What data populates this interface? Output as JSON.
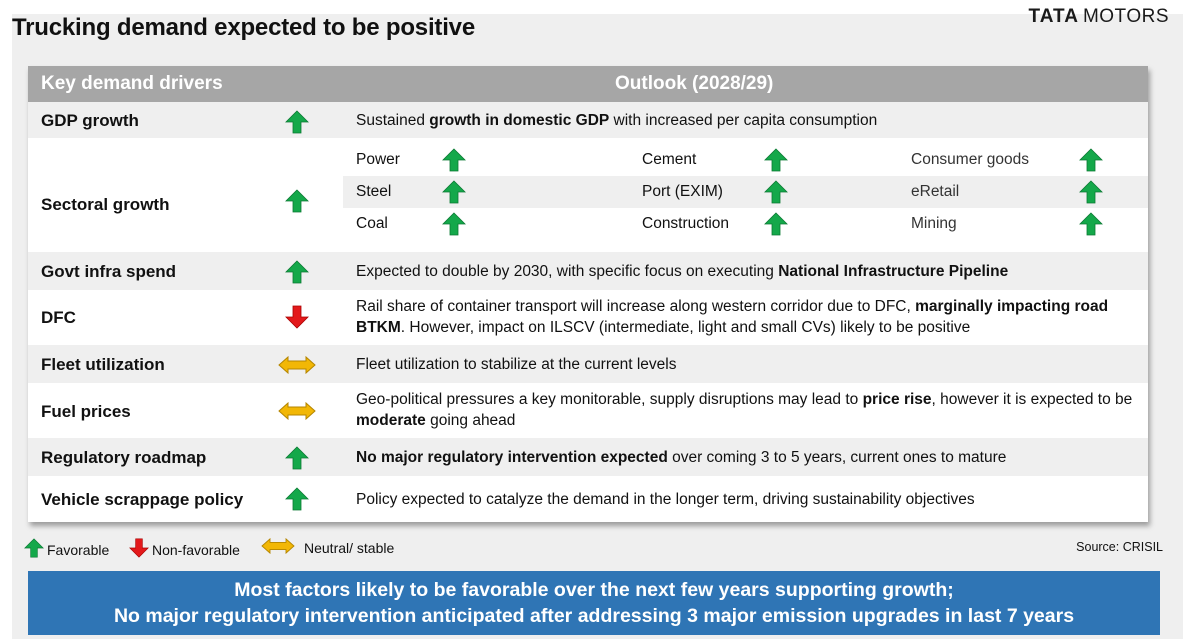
{
  "title": "Trucking demand expected to be positive",
  "logo": {
    "brand": "TATA",
    "name": "MOTORS"
  },
  "colors": {
    "up": "#14a84a",
    "down": "#e3191b",
    "neutral": "#f2b705",
    "header": "#a6a6a6",
    "banner": "#2f75b5"
  },
  "table": {
    "header_left": "Key demand drivers",
    "header_right": "Outlook (2028/29)",
    "rows": [
      {
        "label": "GDP growth",
        "indicator": "up-arrow-icon",
        "desc": {
          "a": "Sustained ",
          "b": "growth in domestic GDP",
          "c": " with increased per capita consumption"
        }
      },
      {
        "label": "Sectoral growth",
        "indicator": "up-arrow-icon",
        "sectors": [
          [
            "Power",
            "Cement",
            "Consumer goods"
          ],
          [
            "Steel",
            "Port (EXIM)",
            "eRetail"
          ],
          [
            "Coal",
            "Construction",
            "Mining"
          ]
        ]
      },
      {
        "label": "Govt infra spend",
        "indicator": "up-arrow-icon",
        "desc": {
          "a": "Expected to double by 2030, with specific focus on executing ",
          "b": "National Infrastructure Pipeline"
        }
      },
      {
        "label": "DFC",
        "indicator": "down-arrow-icon",
        "desc": {
          "a": "Rail share of container transport will increase along western corridor due to DFC, ",
          "b": "marginally impacting road BTKM",
          "c": ". However, impact on ILSCV (intermediate, light and small CVs) likely to be positive"
        }
      },
      {
        "label": "Fleet utilization",
        "indicator": "neutral-arrow-icon",
        "desc": {
          "a": "Fleet utilization to stabilize at the current levels"
        }
      },
      {
        "label": "Fuel prices",
        "indicator": "neutral-arrow-icon",
        "desc": {
          "a": "Geo-political pressures a key monitorable, supply disruptions may lead to ",
          "b": "price rise",
          "c": ", however it is expected to be ",
          "d": "moderate",
          "e": " going ahead"
        }
      },
      {
        "label": "Regulatory roadmap",
        "indicator": "up-arrow-icon",
        "desc": {
          "b": "No major regulatory intervention expected",
          "c": " over coming 3 to 5 years, current ones to mature"
        }
      },
      {
        "label": "Vehicle scrappage policy",
        "indicator": "up-arrow-icon",
        "desc": {
          "a": "Policy expected to catalyze the demand in the longer term, driving sustainability objectives"
        }
      }
    ]
  },
  "legend": {
    "favorable": "Favorable",
    "non_favorable": "Non-favorable",
    "neutral": "Neutral/ stable"
  },
  "source": "Source: CRISIL",
  "banner": {
    "line1": "Most factors likely to be favorable over the next few years supporting growth;",
    "line2": "No major regulatory intervention anticipated after addressing 3 major emission upgrades in last 7 years"
  }
}
